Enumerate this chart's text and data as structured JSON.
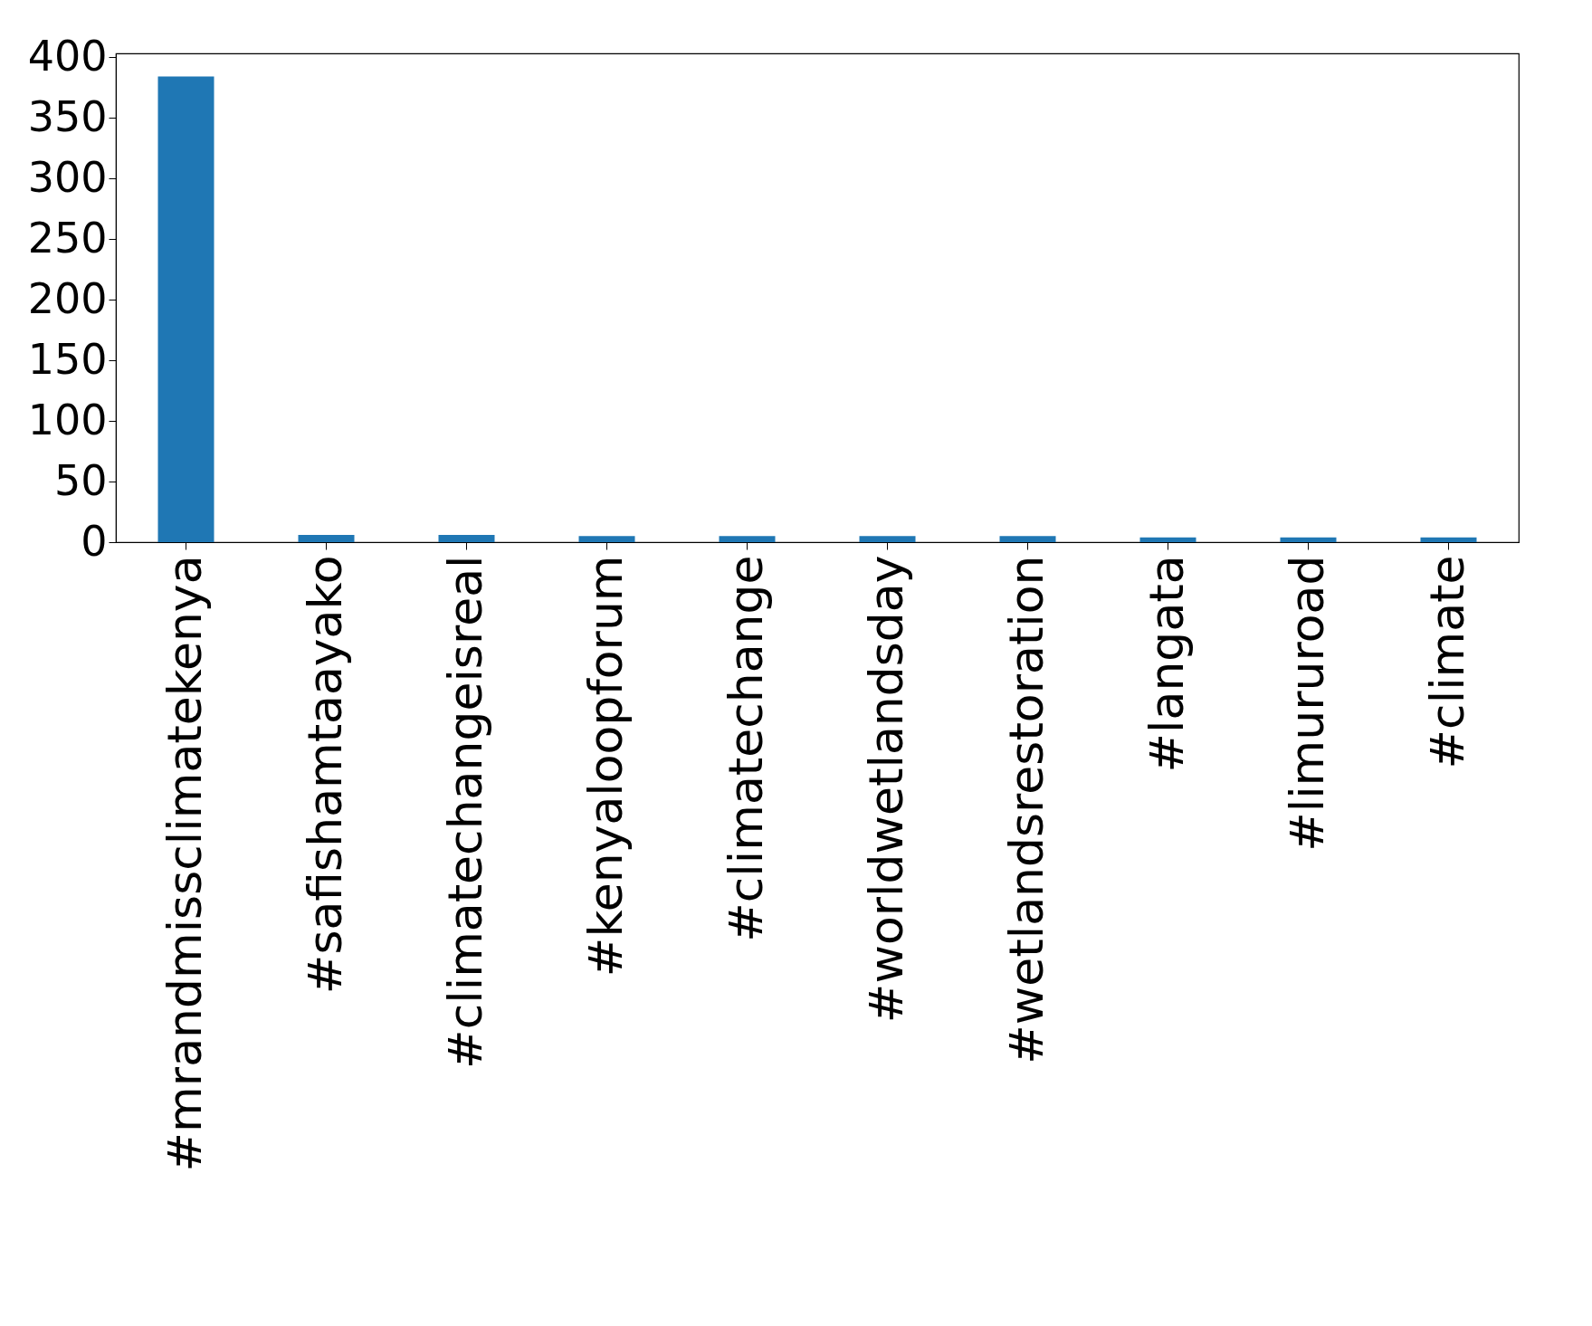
{
  "chart_data": {
    "type": "bar",
    "categories": [
      "#mrandmissclimatekenya",
      "#safishamtaayako",
      "#climatechangeisreal",
      "#kenyaloopforum",
      "#climatechange",
      "#worldwetlandsday",
      "#wetlandsrestoration",
      "#langata",
      "#limururoad",
      "#climate"
    ],
    "values": [
      384,
      6,
      6,
      5,
      5,
      5,
      5,
      4,
      4,
      4
    ],
    "color": "#1f77b4",
    "ylim": [
      0,
      403
    ],
    "yticks": [
      0,
      50,
      100,
      150,
      200,
      250,
      300,
      350,
      400
    ],
    "grid": false
  }
}
